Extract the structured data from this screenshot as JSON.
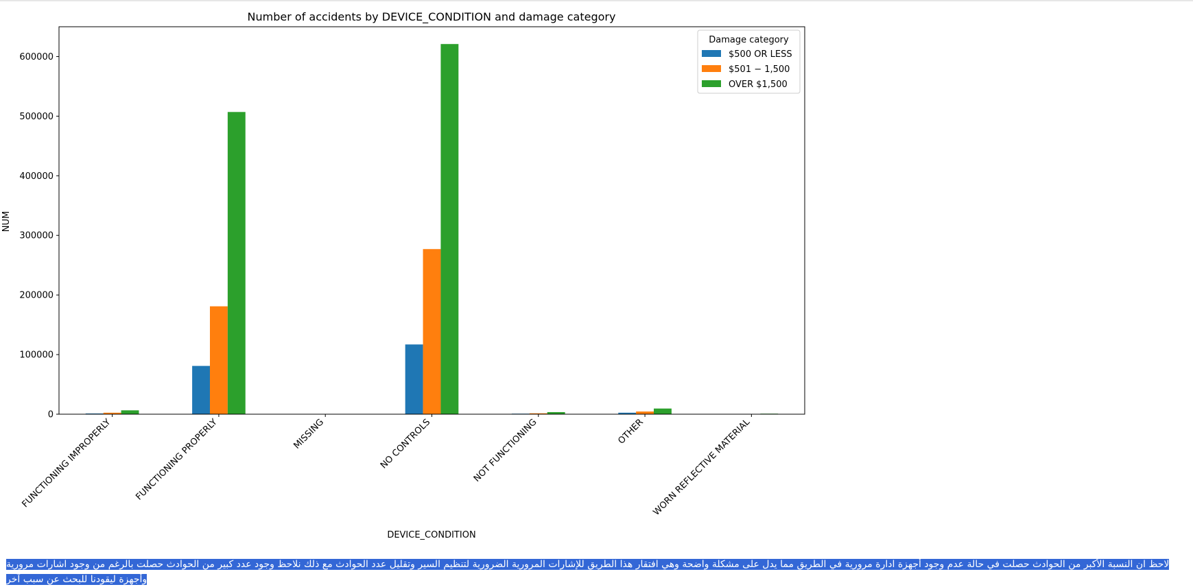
{
  "chart_data": {
    "type": "bar",
    "title": "Number of accidents by DEVICE_CONDITION and damage category",
    "xlabel": "DEVICE_CONDITION",
    "ylabel": "NUM",
    "ylim": [
      0,
      650000
    ],
    "yticks": [
      0,
      100000,
      200000,
      300000,
      400000,
      500000,
      600000
    ],
    "ytick_labels": [
      "0",
      "100000",
      "200000",
      "300000",
      "400000",
      "500000",
      "600000"
    ],
    "grid": false,
    "legend_position": "top-right",
    "legend_title": "Damage category",
    "categories": [
      "FUNCTIONING IMPROPERLY",
      "FUNCTIONING PROPERLY",
      "MISSING",
      "NO CONTROLS",
      "NOT FUNCTIONING",
      "OTHER",
      "WORN REFLECTIVE MATERIAL"
    ],
    "series": [
      {
        "name": "$500 OR LESS",
        "color": "#1f77b4",
        "values": [
          1200,
          81000,
          100,
          117000,
          900,
          2500,
          150
        ]
      },
      {
        "name": "$501 − 1,500",
        "color": "#ff7f0e",
        "values": [
          2500,
          181000,
          150,
          277000,
          1500,
          4500,
          250
        ]
      },
      {
        "name": "OVER $1,500",
        "color": "#2ca02c",
        "values": [
          6500,
          507000,
          300,
          621000,
          3500,
          9500,
          900
        ]
      }
    ]
  },
  "note": {
    "text": "لاحظ ان النسبة الأكبر من الحوادث حصلت في حالة عدم وجود أجهزة ادارة مرورية في الطريق مما يدل على مشكلة واضحة وهي افتقار هذا الطريق للإشارات المرورية الضرورية لتنظيم السير وتقليل عدد الحوادث مع ذلك نلاحظ وجود عدد كبير من الحوادث حصلت بالرغم من وجود اشارات مرورية وأجهزة ليقودنا للبحث عن سبب آخر"
  }
}
